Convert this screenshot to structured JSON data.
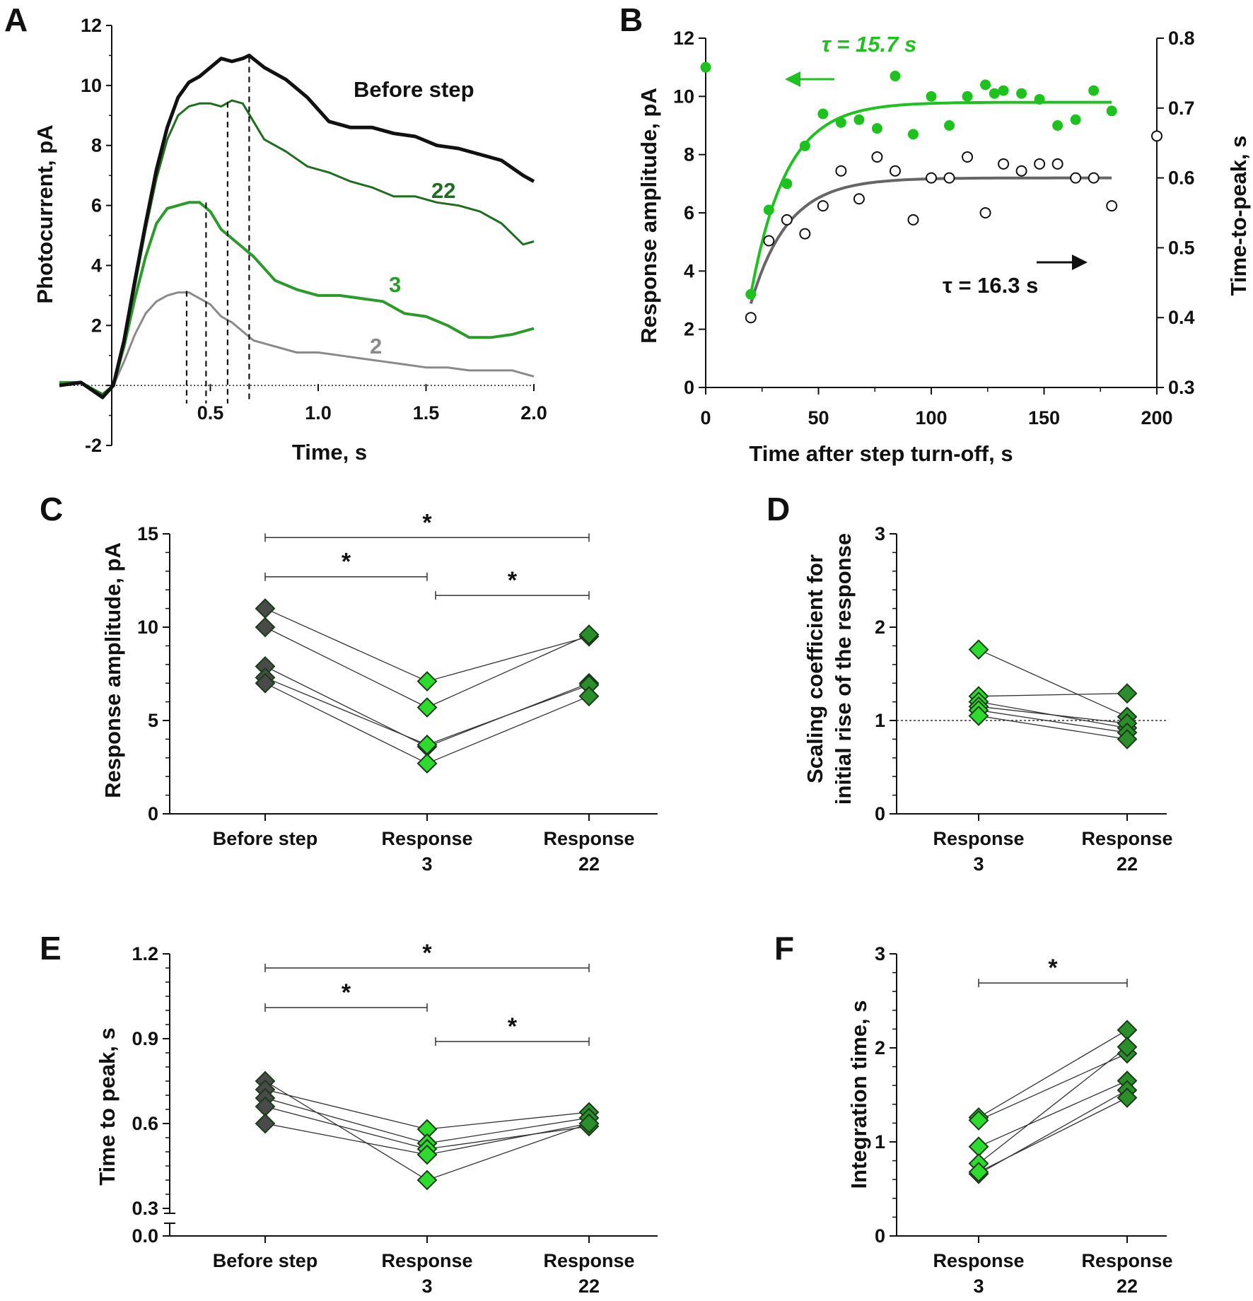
{
  "colors": {
    "black": "#111111",
    "green_light": "#1ec21e",
    "green_mid": "#2a9b2a",
    "green_dark": "#1f6e1f",
    "gray": "#8a8a8a",
    "fit_gray": "#666666",
    "diamond_dark": "#4a4a4a",
    "diamond_bright": "#2ddb2d",
    "diamond_green": "#2a8f2a"
  },
  "chart_data": [
    {
      "id": "A",
      "type": "line",
      "panel_label": "A",
      "xlabel": "Time, s",
      "ylabel": "Photocurrent, pA",
      "xlim": [
        -0.2,
        2.0
      ],
      "ylim": [
        -2,
        12
      ],
      "x_ticks": [
        0.5,
        1.0,
        1.5,
        2.0
      ],
      "x_tick_labels": [
        "0.5",
        "1.0",
        "1.5",
        "2.0"
      ],
      "y_ticks": [
        -2,
        0,
        2,
        4,
        6,
        8,
        10,
        12
      ],
      "y_tick_labels": [
        "-2",
        "",
        "2",
        "4",
        "6",
        "8",
        "10",
        "12"
      ],
      "peak_markers": [
        0.39,
        0.48,
        0.58,
        0.68
      ],
      "series": [
        {
          "name": "Before step",
          "label": "Before step",
          "color_key": "black",
          "width": 5,
          "x": [
            -0.2,
            -0.1,
            0.0,
            0.05,
            0.1,
            0.15,
            0.2,
            0.25,
            0.3,
            0.35,
            0.4,
            0.45,
            0.5,
            0.55,
            0.6,
            0.65,
            0.68,
            0.75,
            0.85,
            0.95,
            1.05,
            1.15,
            1.25,
            1.35,
            1.45,
            1.55,
            1.65,
            1.75,
            1.85,
            1.95,
            2.0
          ],
          "y": [
            0,
            0.1,
            -0.4,
            0,
            1.5,
            3.5,
            5.4,
            7.2,
            8.6,
            9.6,
            10.1,
            10.3,
            10.6,
            10.9,
            10.8,
            10.9,
            11.0,
            10.6,
            10.2,
            9.6,
            8.8,
            8.6,
            8.6,
            8.4,
            8.3,
            8.0,
            7.9,
            7.7,
            7.5,
            7.0,
            6.8
          ]
        },
        {
          "name": "22",
          "label": "22",
          "color_key": "green_dark",
          "width": 3,
          "x": [
            -0.2,
            -0.1,
            0.0,
            0.05,
            0.1,
            0.15,
            0.2,
            0.25,
            0.3,
            0.35,
            0.4,
            0.45,
            0.5,
            0.55,
            0.6,
            0.65,
            0.7,
            0.75,
            0.85,
            0.95,
            1.05,
            1.15,
            1.25,
            1.35,
            1.45,
            1.55,
            1.65,
            1.75,
            1.85,
            1.95,
            2.0
          ],
          "y": [
            0,
            0.1,
            -0.3,
            0,
            1.4,
            3.3,
            5.2,
            6.9,
            8.2,
            9.0,
            9.3,
            9.4,
            9.4,
            9.3,
            9.5,
            9.4,
            8.8,
            8.2,
            7.8,
            7.3,
            7.1,
            6.8,
            6.6,
            6.3,
            6.3,
            6.1,
            6.0,
            5.8,
            5.4,
            4.7,
            4.8
          ]
        },
        {
          "name": "3",
          "label": "3",
          "color_key": "green_mid",
          "width": 4,
          "x": [
            -0.2,
            -0.1,
            0.0,
            0.05,
            0.1,
            0.15,
            0.2,
            0.25,
            0.3,
            0.35,
            0.4,
            0.45,
            0.5,
            0.55,
            0.6,
            0.65,
            0.7,
            0.8,
            0.9,
            1.0,
            1.1,
            1.2,
            1.3,
            1.4,
            1.5,
            1.6,
            1.7,
            1.8,
            1.9,
            2.0
          ],
          "y": [
            0.1,
            0.1,
            -0.3,
            0,
            1.3,
            2.9,
            4.3,
            5.4,
            5.9,
            6.0,
            6.1,
            6.1,
            5.8,
            5.2,
            4.9,
            4.6,
            4.3,
            3.5,
            3.2,
            3.0,
            3.0,
            2.9,
            2.8,
            2.4,
            2.3,
            2.0,
            1.6,
            1.6,
            1.7,
            1.9
          ]
        },
        {
          "name": "2",
          "label": "2",
          "color_key": "gray",
          "width": 3,
          "x": [
            -0.2,
            -0.1,
            0.0,
            0.05,
            0.1,
            0.15,
            0.2,
            0.25,
            0.3,
            0.35,
            0.4,
            0.45,
            0.5,
            0.55,
            0.6,
            0.7,
            0.8,
            0.9,
            1.0,
            1.1,
            1.2,
            1.3,
            1.4,
            1.5,
            1.6,
            1.7,
            1.8,
            1.9,
            2.0
          ],
          "y": [
            0,
            0.1,
            -0.3,
            0,
            0.8,
            1.7,
            2.4,
            2.8,
            3.0,
            3.1,
            3.1,
            2.9,
            2.7,
            2.3,
            2.1,
            1.5,
            1.3,
            1.1,
            1.1,
            1.0,
            0.9,
            0.8,
            0.7,
            0.6,
            0.6,
            0.5,
            0.5,
            0.5,
            0.3
          ]
        }
      ]
    },
    {
      "id": "B",
      "type": "scatter",
      "panel_label": "B",
      "xlabel": "Time after step turn-off, s",
      "ylabel_left": "Response amplitude, pA",
      "ylabel_right": "Time-to-peak, s",
      "xlim": [
        0,
        200
      ],
      "ylim_left": [
        0,
        12
      ],
      "ylim_right": [
        0.3,
        0.8
      ],
      "x_ticks": [
        0,
        50,
        100,
        150,
        200
      ],
      "x_tick_labels": [
        "0",
        "50",
        "100",
        "150",
        "200"
      ],
      "y_ticks_left": [
        0,
        2,
        4,
        6,
        8,
        10,
        12
      ],
      "y_tick_labels_left": [
        "0",
        "2",
        "4",
        "6",
        "8",
        "10",
        "12"
      ],
      "y_ticks_right": [
        0.3,
        0.4,
        0.5,
        0.6,
        0.7,
        0.8
      ],
      "y_tick_labels_right": [
        "0.3",
        "0.4",
        "0.5",
        "0.6",
        "0.7",
        "0.8"
      ],
      "tau_green": "τ = 15.7 s",
      "tau_black": "τ = 16.3 s",
      "series": [
        {
          "name": "Response amplitude",
          "axis": "left",
          "style": "filled",
          "color_key": "green_light",
          "x": [
            0,
            20,
            28,
            36,
            44,
            52,
            60,
            68,
            76,
            84,
            92,
            100,
            108,
            116,
            124,
            128,
            132,
            140,
            148,
            156,
            164,
            172,
            180
          ],
          "y": [
            11.0,
            3.2,
            6.1,
            7.0,
            8.3,
            9.4,
            9.1,
            9.2,
            8.9,
            10.7,
            8.7,
            10.0,
            9.0,
            10.0,
            10.4,
            10.1,
            10.2,
            10.1,
            9.9,
            9.0,
            9.2,
            10.2,
            9.5
          ]
        },
        {
          "name": "Time-to-peak",
          "axis": "right",
          "style": "open",
          "color_key": "black",
          "x": [
            20,
            28,
            36,
            44,
            52,
            60,
            68,
            76,
            84,
            92,
            100,
            108,
            116,
            124,
            132,
            140,
            148,
            156,
            164,
            172,
            180,
            200
          ],
          "y": [
            0.4,
            0.51,
            0.54,
            0.52,
            0.56,
            0.61,
            0.57,
            0.63,
            0.61,
            0.54,
            0.6,
            0.6,
            0.63,
            0.55,
            0.62,
            0.61,
            0.62,
            0.62,
            0.6,
            0.6,
            0.56,
            0.66
          ]
        },
        {
          "name": "Amplitude fit",
          "axis": "left",
          "style": "fit",
          "color_key": "green_light",
          "fit": {
            "x0": 20,
            "x1": 180,
            "y0": 3.2,
            "yinf": 9.8,
            "tau": 15.7
          }
        },
        {
          "name": "Time-to-peak fit",
          "axis": "right",
          "style": "fit",
          "color_key": "fit_gray",
          "fit": {
            "x0": 20,
            "x1": 180,
            "y0": 0.42,
            "yinf": 0.6,
            "tau": 16.3
          }
        }
      ]
    },
    {
      "id": "C",
      "type": "paired_scatter",
      "panel_label": "C",
      "ylabel": "Response amplitude, pA",
      "ylim": [
        0,
        15
      ],
      "y_ticks": [
        0,
        5,
        10,
        15
      ],
      "y_tick_labels": [
        "0",
        "5",
        "10",
        "15"
      ],
      "categories": [
        "Before step",
        "Response\n3",
        "Response\n22"
      ],
      "category_colors": [
        "diamond_dark",
        "diamond_bright",
        "diamond_green"
      ],
      "pairs": [
        [
          11.0,
          7.1,
          9.5
        ],
        [
          10.0,
          5.7,
          9.6
        ],
        [
          7.9,
          3.6,
          7.0
        ],
        [
          7.3,
          3.7,
          6.9
        ],
        [
          7.0,
          2.7,
          6.3
        ]
      ],
      "significance": [
        {
          "from": 0,
          "to": 2,
          "level": 14.8,
          "label": "*"
        },
        {
          "from": 0,
          "to": 1,
          "level": 12.7,
          "label": "*"
        },
        {
          "from": 1,
          "to": 2,
          "level": 11.7,
          "label": "*"
        }
      ]
    },
    {
      "id": "D",
      "type": "paired_scatter",
      "panel_label": "D",
      "ylabel": "Scaling coefficient for initial rise of the response",
      "ylabel_line1": "Scaling coefficient for",
      "ylabel_line2": "initial rise of the response",
      "ylim": [
        0,
        3
      ],
      "y_ticks": [
        0,
        1,
        2,
        3
      ],
      "y_tick_labels": [
        "0",
        "1",
        "2",
        "3"
      ],
      "reference_line": 1,
      "categories": [
        "Response\n3",
        "Response\n22"
      ],
      "category_colors": [
        "diamond_bright",
        "diamond_green"
      ],
      "pairs": [
        [
          1.76,
          1.04
        ],
        [
          1.26,
          1.29
        ],
        [
          1.2,
          0.92
        ],
        [
          1.15,
          0.97
        ],
        [
          1.11,
          0.87
        ],
        [
          1.05,
          0.8
        ]
      ],
      "significance": []
    },
    {
      "id": "E",
      "type": "paired_scatter",
      "panel_label": "E",
      "ylabel": "Time to peak, s",
      "ylim": [
        0,
        1.2
      ],
      "y_break": true,
      "y_ticks": [
        0.0,
        0.3,
        0.6,
        0.9,
        1.2
      ],
      "y_tick_labels": [
        "0.0",
        "0.3",
        "0.6",
        "0.9",
        "1.2"
      ],
      "categories": [
        "Before step",
        "Response\n3",
        "Response\n22"
      ],
      "category_colors": [
        "diamond_dark",
        "diamond_bright",
        "diamond_green"
      ],
      "pairs": [
        [
          0.75,
          0.4,
          0.6
        ],
        [
          0.72,
          0.58,
          0.64
        ],
        [
          0.69,
          0.53,
          0.62
        ],
        [
          0.66,
          0.51,
          0.59
        ],
        [
          0.6,
          0.49,
          0.6
        ]
      ],
      "significance": [
        {
          "from": 0,
          "to": 2,
          "level": 1.15,
          "label": "*"
        },
        {
          "from": 0,
          "to": 1,
          "level": 1.01,
          "label": "*"
        },
        {
          "from": 1,
          "to": 2,
          "level": 0.89,
          "label": "*"
        }
      ]
    },
    {
      "id": "F",
      "type": "paired_scatter",
      "panel_label": "F",
      "ylabel": "Integration time, s",
      "ylim": [
        0,
        3
      ],
      "y_ticks": [
        0,
        1,
        2,
        3
      ],
      "y_tick_labels": [
        "0",
        "1",
        "2",
        "3"
      ],
      "categories": [
        "Response\n3",
        "Response\n22"
      ],
      "category_colors": [
        "diamond_bright",
        "diamond_green"
      ],
      "pairs": [
        [
          1.26,
          2.19
        ],
        [
          1.23,
          1.94
        ],
        [
          0.95,
          1.65
        ],
        [
          0.77,
          2.01
        ],
        [
          0.66,
          1.55
        ],
        [
          0.68,
          1.47
        ]
      ],
      "significance": [
        {
          "from": 0,
          "to": 1,
          "level": 2.69,
          "label": "*"
        }
      ]
    }
  ]
}
